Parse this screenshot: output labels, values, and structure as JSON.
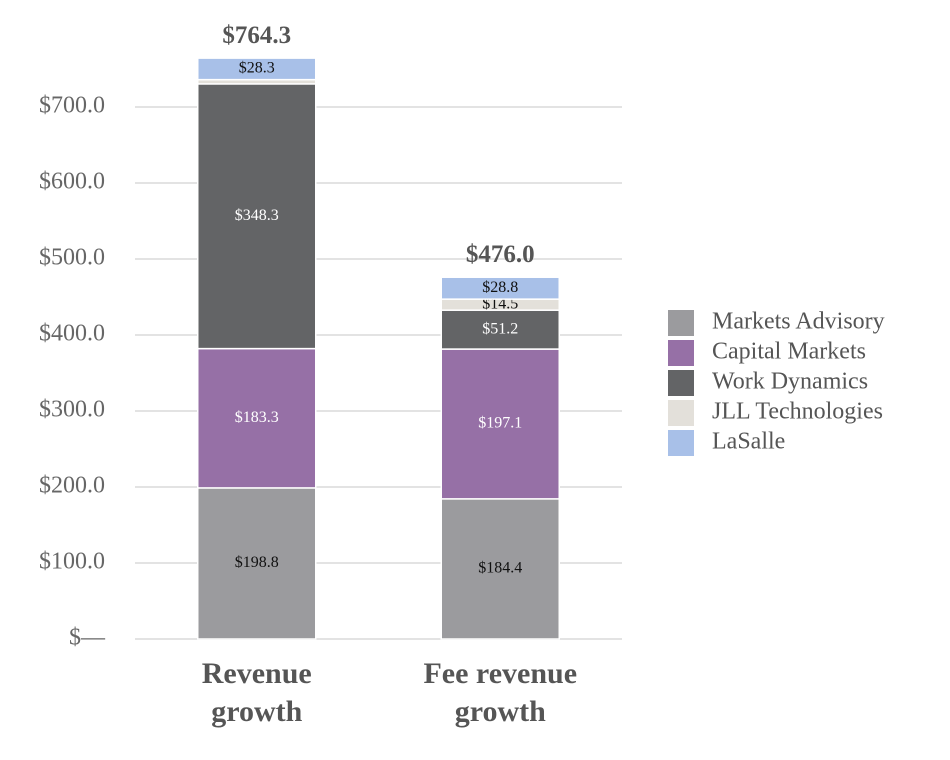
{
  "chart_data": {
    "type": "stacked_bar",
    "categories": [
      "Revenue growth",
      "Fee revenue growth"
    ],
    "series": [
      {
        "name": "Markets Advisory",
        "color": "#9b9b9e",
        "values": [
          198.8,
          184.4
        ],
        "value_labels": [
          "$198.8",
          "$184.4"
        ]
      },
      {
        "name": "Capital Markets",
        "color": "#9670a6",
        "values": [
          183.3,
          197.1
        ],
        "value_labels": [
          "$183.3",
          "$197.1"
        ]
      },
      {
        "name": "Work Dynamics",
        "color": "#636466",
        "values": [
          348.3,
          51.2
        ],
        "value_labels": [
          "$348.3",
          "$51.2"
        ]
      },
      {
        "name": "JLL Technologies",
        "color": "#e3e0da",
        "values": [
          5.6,
          14.5
        ],
        "value_labels": [
          null,
          "$14.5"
        ]
      },
      {
        "name": "LaSalle",
        "color": "#a8c0e8",
        "values": [
          28.3,
          28.8
        ],
        "value_labels": [
          "$28.3",
          "$28.8"
        ]
      }
    ],
    "total_labels": [
      "$764.3",
      "$476.0"
    ],
    "ylim": [
      0,
      800
    ],
    "yticks": [
      {
        "value": 0,
        "label": "$—"
      },
      {
        "value": 100,
        "label": "$100.0"
      },
      {
        "value": 200,
        "label": "$200.0"
      },
      {
        "value": 300,
        "label": "$300.0"
      },
      {
        "value": 400,
        "label": "$400.0"
      },
      {
        "value": 500,
        "label": "$500.0"
      },
      {
        "value": 600,
        "label": "$600.0"
      },
      {
        "value": 700,
        "label": "$700.0"
      }
    ],
    "grid": true,
    "legend": "right"
  }
}
